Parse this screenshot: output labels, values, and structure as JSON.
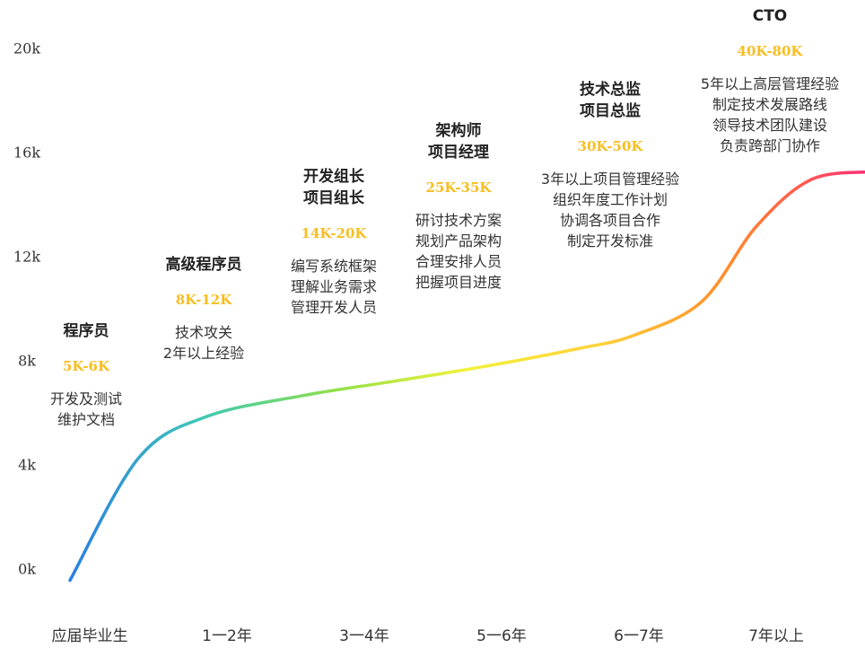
{
  "chart_data": {
    "type": "line",
    "title": "",
    "xlabel": "",
    "ylabel": "",
    "x_categories": [
      "应届毕业生",
      "1一2年",
      "3一4年",
      "5一6年",
      "6一7年",
      "7年以上"
    ],
    "y_ticks": [
      "0k",
      "4k",
      "8k",
      "12k",
      "16k",
      "20k"
    ],
    "ylim": [
      0,
      20
    ],
    "grid": false,
    "curve_color_stops": [
      "#2a7fe0",
      "#3fc7b5",
      "#8fe04a",
      "#f2f23a",
      "#ffd23a",
      "#ff8a2a",
      "#ff2f74"
    ],
    "curve_points": [
      {
        "x": 0.0,
        "y": -0.4
      },
      {
        "x": 0.5,
        "y": 4.3
      },
      {
        "x": 1.0,
        "y": 5.9
      },
      {
        "x": 1.7,
        "y": 6.7
      },
      {
        "x": 2.3,
        "y": 7.2
      },
      {
        "x": 3.0,
        "y": 7.8
      },
      {
        "x": 3.7,
        "y": 8.5
      },
      {
        "x": 4.1,
        "y": 9.0
      },
      {
        "x": 4.6,
        "y": 10.3
      },
      {
        "x": 5.0,
        "y": 13.2
      },
      {
        "x": 5.4,
        "y": 15.0
      },
      {
        "x": 5.85,
        "y": 15.3
      }
    ]
  },
  "stages": [
    {
      "title": [
        "程序员"
      ],
      "salary": "5K-6K",
      "desc": [
        "开发及测试",
        "维护文档"
      ]
    },
    {
      "title": [
        "高级程序员"
      ],
      "salary": "8K-12K",
      "desc": [
        "技术攻关",
        "2年以上经验"
      ]
    },
    {
      "title": [
        "开发组长",
        "项目组长"
      ],
      "salary": "14K-20K",
      "desc": [
        "编写系统框架",
        "理解业务需求",
        "管理开发人员"
      ]
    },
    {
      "title": [
        "架构师",
        "项目经理"
      ],
      "salary": "25K-35K",
      "desc": [
        "研讨技术方案",
        "规划产品架构",
        "合理安排人员",
        "把握项目进度"
      ]
    },
    {
      "title": [
        "技术总监",
        "项目总监"
      ],
      "salary": "30K-50K",
      "desc": [
        "3年以上项目管理经验",
        "组织年度工作计划",
        "协调各项目合作",
        "制定开发标准"
      ]
    },
    {
      "title": [
        "CTO"
      ],
      "salary": "40K-80K",
      "desc": [
        "5年以上高层管理经验",
        "制定技术发展路线",
        "领导技术团队建设",
        "负责跨部门协作"
      ]
    }
  ]
}
